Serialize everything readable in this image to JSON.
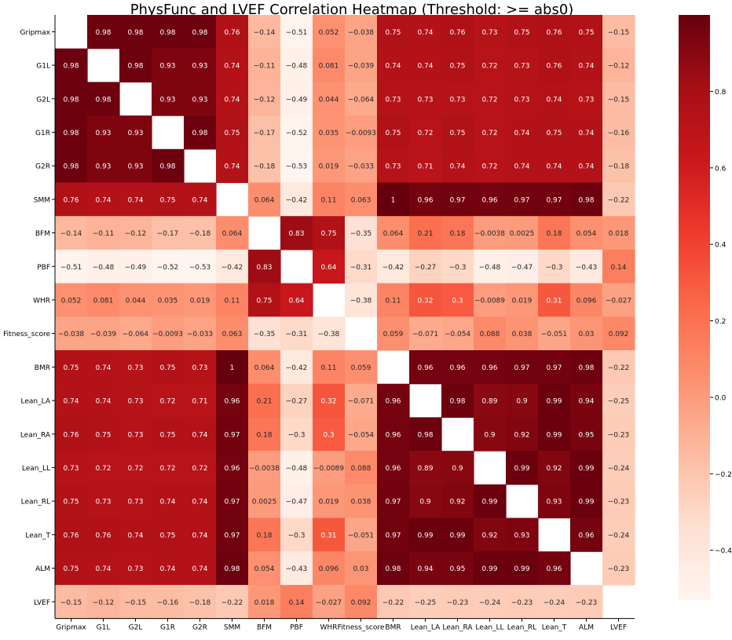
{
  "chart_data": {
    "type": "heatmap",
    "title": "PhysFunc and LVEF Correlation Heatmap (Threshold: >= abs0)",
    "xlabel": "",
    "ylabel": "",
    "labels": [
      "Gripmax",
      "G1L",
      "G2L",
      "G1R",
      "G2R",
      "SMM",
      "BFM",
      "PBF",
      "WHR",
      "Fitness_score",
      "BMR",
      "Lean_LA",
      "Lean_RA",
      "Lean_LL",
      "Lean_RL",
      "Lean_T",
      "ALM",
      "LVEF"
    ],
    "matrix": [
      [
        null,
        0.98,
        0.98,
        0.98,
        0.98,
        0.76,
        -0.14,
        -0.51,
        0.052,
        -0.038,
        0.75,
        0.74,
        0.76,
        0.73,
        0.75,
        0.76,
        0.75,
        -0.15
      ],
      [
        0.98,
        null,
        0.98,
        0.93,
        0.93,
        0.74,
        -0.11,
        -0.48,
        0.081,
        -0.039,
        0.74,
        0.74,
        0.75,
        0.72,
        0.73,
        0.76,
        0.74,
        -0.12
      ],
      [
        0.98,
        0.98,
        null,
        0.93,
        0.93,
        0.74,
        -0.12,
        -0.49,
        0.044,
        -0.064,
        0.73,
        0.73,
        0.73,
        0.72,
        0.73,
        0.74,
        0.73,
        -0.15
      ],
      [
        0.98,
        0.93,
        0.93,
        null,
        0.98,
        0.75,
        -0.17,
        -0.52,
        0.035,
        -0.0093,
        0.75,
        0.72,
        0.75,
        0.72,
        0.74,
        0.75,
        0.74,
        -0.16
      ],
      [
        0.98,
        0.93,
        0.93,
        0.98,
        null,
        0.74,
        -0.18,
        -0.53,
        0.019,
        -0.033,
        0.73,
        0.71,
        0.74,
        0.72,
        0.74,
        0.74,
        0.74,
        -0.18
      ],
      [
        0.76,
        0.74,
        0.74,
        0.75,
        0.74,
        null,
        0.064,
        -0.42,
        0.11,
        0.063,
        1,
        0.96,
        0.97,
        0.96,
        0.97,
        0.97,
        0.98,
        -0.22
      ],
      [
        -0.14,
        -0.11,
        -0.12,
        -0.17,
        -0.18,
        0.064,
        null,
        0.83,
        0.75,
        -0.35,
        0.064,
        0.21,
        0.18,
        -0.0038,
        0.0025,
        0.18,
        0.054,
        0.018
      ],
      [
        -0.51,
        -0.48,
        -0.49,
        -0.52,
        -0.53,
        -0.42,
        0.83,
        null,
        0.64,
        -0.31,
        -0.42,
        -0.27,
        -0.3,
        -0.48,
        -0.47,
        -0.3,
        -0.43,
        0.14
      ],
      [
        0.052,
        0.081,
        0.044,
        0.035,
        0.019,
        0.11,
        0.75,
        0.64,
        null,
        -0.38,
        0.11,
        0.32,
        0.3,
        -0.0089,
        0.019,
        0.31,
        0.096,
        -0.027
      ],
      [
        -0.038,
        -0.039,
        -0.064,
        -0.0093,
        -0.033,
        0.063,
        -0.35,
        -0.31,
        -0.38,
        null,
        0.059,
        -0.071,
        -0.054,
        0.088,
        0.038,
        -0.051,
        0.03,
        0.092
      ],
      [
        0.75,
        0.74,
        0.73,
        0.75,
        0.73,
        1,
        0.064,
        -0.42,
        0.11,
        0.059,
        null,
        0.96,
        0.96,
        0.96,
        0.97,
        0.97,
        0.98,
        -0.22
      ],
      [
        0.74,
        0.74,
        0.73,
        0.72,
        0.71,
        0.96,
        0.21,
        -0.27,
        0.32,
        -0.071,
        0.96,
        null,
        0.98,
        0.89,
        0.9,
        0.99,
        0.94,
        -0.25
      ],
      [
        0.76,
        0.75,
        0.73,
        0.75,
        0.74,
        0.97,
        0.18,
        -0.3,
        0.3,
        -0.054,
        0.96,
        0.98,
        null,
        0.9,
        0.92,
        0.99,
        0.95,
        -0.23
      ],
      [
        0.73,
        0.72,
        0.72,
        0.72,
        0.72,
        0.96,
        -0.0038,
        -0.48,
        -0.0089,
        0.088,
        0.96,
        0.89,
        0.9,
        null,
        0.99,
        0.92,
        0.99,
        -0.24
      ],
      [
        0.75,
        0.73,
        0.73,
        0.74,
        0.74,
        0.97,
        0.0025,
        -0.47,
        0.019,
        0.038,
        0.97,
        0.9,
        0.92,
        0.99,
        null,
        0.93,
        0.99,
        -0.23
      ],
      [
        0.76,
        0.76,
        0.74,
        0.75,
        0.74,
        0.97,
        0.18,
        -0.3,
        0.31,
        -0.051,
        0.97,
        0.99,
        0.99,
        0.92,
        0.93,
        null,
        0.96,
        -0.24
      ],
      [
        0.75,
        0.74,
        0.73,
        0.74,
        0.74,
        0.98,
        0.054,
        -0.43,
        0.096,
        0.03,
        0.98,
        0.94,
        0.95,
        0.99,
        0.99,
        0.96,
        null,
        -0.23
      ],
      [
        -0.15,
        -0.12,
        -0.15,
        -0.16,
        -0.18,
        -0.22,
        0.018,
        0.14,
        -0.027,
        0.092,
        -0.22,
        -0.25,
        -0.23,
        -0.24,
        -0.23,
        -0.24,
        -0.23,
        null
      ]
    ],
    "colorscale": "Reds",
    "vmin": -0.53,
    "vmax": 1.0,
    "colorbar_ticks": [
      -0.4,
      -0.2,
      0.0,
      0.2,
      0.4,
      0.6,
      0.8
    ],
    "colorbar_tick_labels": [
      "−0.4",
      "−0.2",
      "0.0",
      "0.2",
      "0.4",
      "0.6",
      "0.8"
    ],
    "grid": false,
    "legend": "colorbar-right"
  }
}
